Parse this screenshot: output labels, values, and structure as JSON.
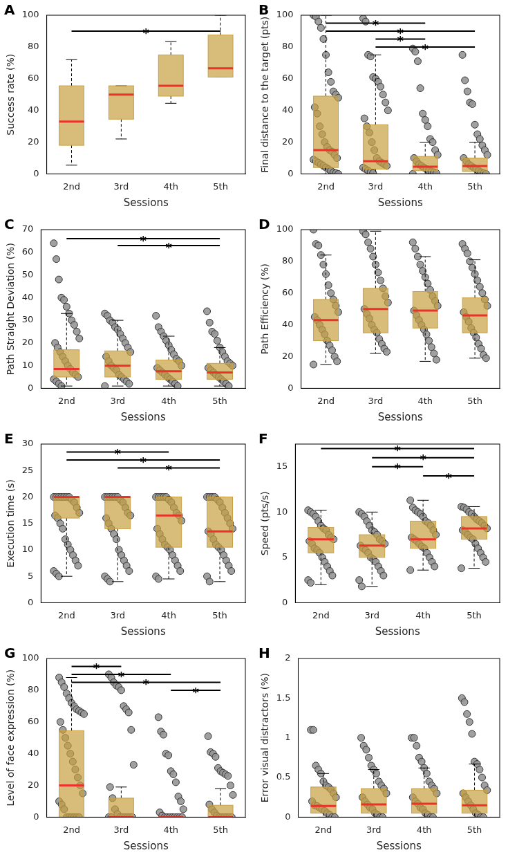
{
  "chart_data": [
    {
      "panel": "A",
      "type": "box",
      "x_label": "Sessions",
      "y_label": "Success rate (%)",
      "color": "#c8a040",
      "categories": [
        "2nd",
        "3rd",
        "4th",
        "5th"
      ],
      "ylim": [
        0,
        100
      ],
      "yticks": [
        0,
        20,
        40,
        60,
        80,
        100
      ],
      "boxes": [
        {
          "q1": 18,
          "median": 33,
          "q3": 55.5,
          "whisker_low": 5.5,
          "whisker_high": 72
        },
        {
          "q1": 34.5,
          "median": 50,
          "q3": 55.5,
          "whisker_low": 22,
          "whisker_high": 55.5
        },
        {
          "q1": 49,
          "median": 55.5,
          "q3": 75,
          "whisker_low": 44.5,
          "whisker_high": 83.5
        },
        {
          "q1": 61,
          "median": 66.5,
          "q3": 87.5,
          "whisker_low": 61,
          "whisker_high": 100
        }
      ],
      "significance": [
        {
          "from": "2nd",
          "to": "5th",
          "y": 90,
          "label": "*"
        }
      ]
    },
    {
      "panel": "B",
      "type": "box",
      "x_label": "Sessions",
      "y_label": "Final distance to the target (pts)",
      "color": "#c8a040",
      "categories": [
        "2nd",
        "3rd",
        "4th",
        "5th"
      ],
      "ylim": [
        0,
        100
      ],
      "yticks": [
        0,
        20,
        40,
        60,
        80,
        100
      ],
      "boxes": [
        {
          "q1": 4,
          "median": 15,
          "q3": 49,
          "whisker_low": 0,
          "whisker_high": 100
        },
        {
          "q1": 3,
          "median": 8,
          "q3": 31,
          "whisker_low": 0,
          "whisker_high": 75
        },
        {
          "q1": 2,
          "median": 4.5,
          "q3": 11,
          "whisker_low": 0,
          "whisker_high": 20
        },
        {
          "q1": 1.5,
          "median": 5,
          "q3": 10,
          "whisker_low": 0,
          "whisker_high": 20
        }
      ],
      "points": [
        [
          100,
          99,
          96,
          92,
          85,
          75,
          64,
          58,
          52,
          50,
          48,
          42,
          38,
          30,
          25,
          20,
          17,
          15,
          14,
          12,
          10,
          9,
          8,
          7,
          6,
          5,
          4,
          3,
          2,
          1,
          0.5,
          0
        ],
        [
          98,
          96,
          75,
          74,
          61,
          60,
          58,
          55,
          50,
          45,
          40,
          35,
          30,
          26,
          20,
          15,
          10,
          8,
          7,
          6,
          5,
          4,
          3,
          2,
          1,
          0.5
        ],
        [
          79,
          77,
          71,
          54,
          38,
          34,
          30,
          22,
          20,
          15,
          12,
          10,
          8,
          6,
          5,
          4,
          3,
          2,
          1.5,
          1,
          0.5,
          0
        ],
        [
          75,
          59,
          52,
          45,
          44,
          31,
          25,
          22,
          18,
          15,
          12,
          10,
          8,
          6,
          5,
          4,
          3,
          2,
          1,
          0.5,
          0
        ]
      ],
      "significance": [
        {
          "from": "2nd",
          "to": "4th",
          "y": 95,
          "label": "*"
        },
        {
          "from": "2nd",
          "to": "5th",
          "y": 90,
          "label": "*"
        },
        {
          "from": "3rd",
          "to": "4th",
          "y": 85,
          "label": "*"
        },
        {
          "from": "3rd",
          "to": "5th",
          "y": 80,
          "label": "*"
        }
      ]
    },
    {
      "panel": "C",
      "type": "box",
      "x_label": "Sessions",
      "y_label": "Path Straight Deviation (%)",
      "color": "#c8a040",
      "categories": [
        "2nd",
        "3rd",
        "4th",
        "5th"
      ],
      "ylim": [
        0,
        70
      ],
      "yticks": [
        0,
        10,
        20,
        30,
        40,
        50,
        60,
        70
      ],
      "boxes": [
        {
          "q1": 5,
          "median": 8.5,
          "q3": 17,
          "whisker_low": 1,
          "whisker_high": 33
        },
        {
          "q1": 5,
          "median": 10,
          "q3": 16.5,
          "whisker_low": 1,
          "whisker_high": 30
        },
        {
          "q1": 4,
          "median": 7.5,
          "q3": 12.5,
          "whisker_low": 1,
          "whisker_high": 23
        },
        {
          "q1": 4,
          "median": 7,
          "q3": 11,
          "whisker_low": 1,
          "whisker_high": 18
        }
      ],
      "points": [
        [
          64,
          57,
          48,
          40,
          39,
          36,
          33,
          30,
          28,
          25,
          22,
          20,
          18,
          16,
          14,
          12,
          10,
          8.5,
          7,
          6,
          5,
          4,
          3,
          2,
          1
        ],
        [
          33,
          32,
          30,
          29,
          27,
          26,
          24,
          22,
          20,
          18,
          16,
          14,
          12,
          10,
          9,
          8,
          6,
          5,
          4,
          3,
          2,
          1
        ],
        [
          32,
          27,
          25,
          23,
          21,
          19,
          17,
          15,
          13,
          12,
          10,
          9,
          8,
          7,
          6,
          5,
          4,
          3,
          2,
          1
        ],
        [
          34,
          29,
          25,
          24,
          21,
          18,
          16,
          14,
          12,
          11,
          10,
          9,
          8,
          7,
          6,
          5,
          4,
          3,
          2,
          1
        ]
      ],
      "significance": [
        {
          "from": "2nd",
          "to": "5th",
          "y": 66,
          "label": "*"
        },
        {
          "from": "3rd",
          "to": "5th",
          "y": 63,
          "label": "*"
        }
      ]
    },
    {
      "panel": "D",
      "type": "box",
      "x_label": "Sessions",
      "y_label": "Path Efficiency (%)",
      "color": "#c8a040",
      "categories": [
        "2nd",
        "3rd",
        "4th",
        "5th"
      ],
      "ylim": [
        0,
        100
      ],
      "yticks": [
        0,
        20,
        40,
        60,
        80,
        100
      ],
      "boxes": [
        {
          "q1": 30,
          "median": 43,
          "q3": 56,
          "whisker_low": 15,
          "whisker_high": 84
        },
        {
          "q1": 35,
          "median": 50,
          "q3": 63,
          "whisker_low": 22,
          "whisker_high": 99
        },
        {
          "q1": 38,
          "median": 49,
          "q3": 61,
          "whisker_low": 17,
          "whisker_high": 83
        },
        {
          "q1": 35,
          "median": 46,
          "q3": 57,
          "whisker_low": 19,
          "whisker_high": 81
        }
      ],
      "points": [
        [
          100,
          91,
          90,
          84,
          78,
          72,
          65,
          60,
          56,
          52,
          48,
          45,
          43,
          40,
          37,
          34,
          30,
          27,
          24,
          20,
          17,
          15
        ],
        [
          99,
          97,
          92,
          88,
          83,
          78,
          73,
          68,
          63,
          58,
          54,
          50,
          47,
          44,
          40,
          37,
          35,
          31,
          28,
          25,
          23
        ],
        [
          92,
          88,
          83,
          78,
          74,
          70,
          66,
          62,
          58,
          55,
          52,
          49,
          46,
          43,
          40,
          37,
          34,
          30,
          26,
          22,
          18
        ],
        [
          91,
          88,
          85,
          80,
          76,
          72,
          68,
          64,
          60,
          56,
          52,
          48,
          45,
          42,
          38,
          35,
          32,
          28,
          25,
          21,
          19
        ]
      ],
      "significance": []
    },
    {
      "panel": "E",
      "type": "box",
      "x_label": "Sessions",
      "y_label": "Execution time (s)",
      "color": "#c8a040",
      "categories": [
        "2nd",
        "3rd",
        "4th",
        "5th"
      ],
      "ylim": [
        0,
        30
      ],
      "yticks": [
        0,
        5,
        10,
        15,
        20,
        25,
        30
      ],
      "boxes": [
        {
          "q1": 16,
          "median": 20,
          "q3": 20,
          "whisker_low": 5,
          "whisker_high": 20
        },
        {
          "q1": 14,
          "median": 20,
          "q3": 20,
          "whisker_low": 4,
          "whisker_high": 20
        },
        {
          "q1": 10.5,
          "median": 16.5,
          "q3": 20,
          "whisker_low": 4.5,
          "whisker_high": 20
        },
        {
          "q1": 10.5,
          "median": 13.5,
          "q3": 20,
          "whisker_low": 4,
          "whisker_high": 20
        }
      ],
      "points": [
        [
          20,
          20,
          20,
          20,
          20,
          20,
          20,
          19.5,
          19,
          18,
          17,
          16.5,
          16,
          15,
          14,
          12,
          11,
          10,
          9,
          8,
          7,
          6,
          5.5,
          5
        ],
        [
          20,
          20,
          20,
          20,
          20,
          20,
          19.5,
          19,
          18,
          17,
          16.5,
          16,
          15,
          14,
          13,
          12,
          10,
          9,
          8,
          7,
          6,
          5,
          4.5,
          4
        ],
        [
          20,
          20,
          20,
          20,
          20,
          19.5,
          19,
          18,
          17,
          16.5,
          15.5,
          14,
          13,
          12,
          11,
          10.5,
          10,
          9,
          8,
          7,
          6,
          5,
          4.5
        ],
        [
          20,
          20,
          20,
          20,
          19.5,
          19,
          18,
          17,
          16,
          15,
          14,
          13.5,
          13,
          12,
          11,
          10.5,
          10,
          9,
          8,
          7,
          6,
          5,
          4
        ]
      ],
      "significance": [
        {
          "from": "2nd",
          "to": "4th",
          "y": 28.5,
          "label": "*"
        },
        {
          "from": "2nd",
          "to": "5th",
          "y": 27,
          "label": "*"
        },
        {
          "from": "3rd",
          "to": "5th",
          "y": 25.5,
          "label": "*"
        }
      ]
    },
    {
      "panel": "F",
      "type": "box",
      "x_label": "Sessions",
      "y_label": "Speed (pts/s)",
      "color": "#c8a040",
      "categories": [
        "2nd",
        "3rd",
        "4th",
        "5th"
      ],
      "ylim": [
        0,
        17.5
      ],
      "yticks": [
        0,
        5,
        10,
        15
      ],
      "boxes": [
        {
          "q1": 5.5,
          "median": 7,
          "q3": 8.3,
          "whisker_low": 2,
          "whisker_high": 10.2
        },
        {
          "q1": 5,
          "median": 6.3,
          "q3": 7.5,
          "whisker_low": 1.8,
          "whisker_high": 10
        },
        {
          "q1": 6,
          "median": 7,
          "q3": 9,
          "whisker_low": 3.6,
          "whisker_high": 11.3
        },
        {
          "q1": 7,
          "median": 8.2,
          "q3": 9.5,
          "whisker_low": 3.8,
          "whisker_high": 10.6
        }
      ],
      "points": [
        [
          10.2,
          10,
          9.8,
          9.5,
          9,
          8.5,
          8.2,
          8,
          7.5,
          7.2,
          7,
          6.8,
          6.5,
          6,
          5.8,
          5.5,
          5,
          4.5,
          4,
          3.5,
          3,
          2.5,
          2.2
        ],
        [
          10,
          9.8,
          9.5,
          9,
          8.5,
          8,
          7.8,
          7.5,
          7,
          6.8,
          6.5,
          6.3,
          6,
          5.8,
          5.5,
          5,
          4.8,
          4.5,
          4,
          3.5,
          3,
          2.5,
          1.8
        ],
        [
          11.3,
          10.5,
          10.2,
          10,
          9.8,
          9.5,
          9,
          8.8,
          8.5,
          8,
          7.5,
          7.2,
          7,
          6.8,
          6.5,
          6.2,
          6,
          5.5,
          5,
          4.5,
          4,
          3.6
        ],
        [
          10.6,
          10.5,
          10.3,
          10,
          9.8,
          9.5,
          9.2,
          9,
          8.8,
          8.5,
          8.2,
          8,
          7.8,
          7.5,
          7.2,
          7,
          6.5,
          6,
          5.5,
          5,
          4.5,
          3.8
        ]
      ],
      "significance": [
        {
          "from": "2nd",
          "to": "5th",
          "y": 17,
          "label": "*"
        },
        {
          "from": "3rd",
          "to": "5th",
          "y": 16,
          "label": "*"
        },
        {
          "from": "3rd",
          "to": "4th",
          "y": 15,
          "label": "*"
        },
        {
          "from": "4th",
          "to": "5th",
          "y": 14,
          "label": "*"
        }
      ]
    },
    {
      "panel": "G",
      "type": "box",
      "x_label": "Sessions",
      "y_label": "Level of face expression (%)",
      "color": "#c8a040",
      "categories": [
        "2nd",
        "3rd",
        "4th",
        "5th"
      ],
      "ylim": [
        0,
        100
      ],
      "yticks": [
        0,
        20,
        40,
        60,
        80,
        100
      ],
      "boxes": [
        {
          "q1": 0,
          "median": 20,
          "q3": 54.5,
          "whisker_low": 0,
          "whisker_high": 88
        },
        {
          "q1": 0,
          "median": 0,
          "q3": 12,
          "whisker_low": 0,
          "whisker_high": 19
        },
        {
          "q1": 0,
          "median": 0,
          "q3": 0,
          "whisker_low": 0,
          "whisker_high": 0
        },
        {
          "q1": 0,
          "median": 0,
          "q3": 7.5,
          "whisker_low": 0,
          "whisker_high": 18
        }
      ],
      "points": [
        [
          88,
          85,
          82,
          78,
          75,
          72,
          70,
          68,
          67,
          66,
          65,
          60,
          55,
          50,
          45,
          40,
          35,
          30,
          25,
          20,
          15,
          10,
          8,
          5,
          0,
          0,
          0,
          0,
          0,
          0
        ],
        [
          90,
          88,
          85,
          83,
          82,
          80,
          70,
          68,
          66,
          55,
          33,
          19,
          12,
          5,
          2,
          0,
          0,
          0,
          0,
          0,
          0,
          0,
          0
        ],
        [
          63,
          54,
          52,
          40,
          39,
          29,
          27,
          22,
          13,
          10,
          5,
          3,
          1,
          0,
          0,
          0,
          0,
          0,
          0,
          0,
          0
        ],
        [
          51,
          41,
          40,
          38,
          31,
          29,
          28,
          27,
          26,
          20,
          14,
          8,
          5,
          3,
          1,
          0,
          0,
          0,
          0,
          0,
          0
        ]
      ],
      "significance": [
        {
          "from": "2nd",
          "to": "3rd",
          "y": 95,
          "label": "*"
        },
        {
          "from": "2nd",
          "to": "4th",
          "y": 90,
          "label": "*"
        },
        {
          "from": "2nd",
          "to": "5th",
          "y": 85,
          "label": "*"
        },
        {
          "from": "4th",
          "to": "5th",
          "y": 80,
          "label": "*"
        }
      ]
    },
    {
      "panel": "H",
      "type": "box",
      "x_label": "Sessions",
      "y_label": "Error visual distractors (%)",
      "color": "#c8a040",
      "categories": [
        "2nd",
        "3rd",
        "4th",
        "5th"
      ],
      "ylim": [
        0,
        2
      ],
      "yticks": [
        0,
        0.5,
        1,
        1.5,
        2
      ],
      "boxes": [
        {
          "q1": 0.05,
          "median": 0.14,
          "q3": 0.38,
          "whisker_low": 0,
          "whisker_high": 0.55
        },
        {
          "q1": 0.05,
          "median": 0.16,
          "q3": 0.36,
          "whisker_low": 0,
          "whisker_high": 0.6
        },
        {
          "q1": 0.05,
          "median": 0.17,
          "q3": 0.36,
          "whisker_low": 0,
          "whisker_high": 0.62
        },
        {
          "q1": 0.05,
          "median": 0.15,
          "q3": 0.34,
          "whisker_low": 0,
          "whisker_high": 0.67
        }
      ],
      "points": [
        [
          1.1,
          1.1,
          0.65,
          0.6,
          0.55,
          0.45,
          0.4,
          0.38,
          0.35,
          0.3,
          0.25,
          0.2,
          0.15,
          0.14,
          0.12,
          0.1,
          0.08,
          0.05,
          0.03,
          0,
          0
        ],
        [
          1,
          0.9,
          0.85,
          0.75,
          0.65,
          0.6,
          0.55,
          0.45,
          0.4,
          0.36,
          0.3,
          0.25,
          0.2,
          0.16,
          0.12,
          0.1,
          0.05,
          0.03,
          0,
          0
        ],
        [
          1,
          1,
          0.9,
          0.75,
          0.7,
          0.62,
          0.55,
          0.45,
          0.4,
          0.36,
          0.3,
          0.25,
          0.2,
          0.17,
          0.12,
          0.1,
          0.05,
          0.03,
          0,
          0
        ],
        [
          1.5,
          1.45,
          1.3,
          1.2,
          1.05,
          0.7,
          0.67,
          0.6,
          0.5,
          0.4,
          0.34,
          0.3,
          0.25,
          0.2,
          0.15,
          0.1,
          0.05,
          0.03,
          0,
          0
        ]
      ],
      "significance": []
    }
  ]
}
